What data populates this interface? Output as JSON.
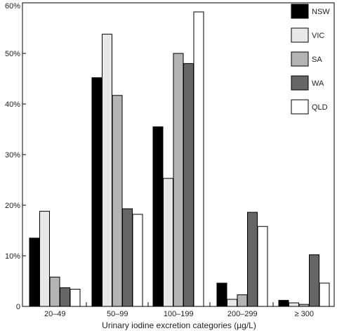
{
  "chart_data": {
    "type": "bar",
    "xlabel": "Urinary iodine excretion categories (µg/L)",
    "ylabel": "",
    "categories": [
      "20–49",
      "50–99",
      "100–199",
      "200–299",
      "≥ 300"
    ],
    "ylim": [
      0,
      60
    ],
    "yticks": [
      0,
      10,
      20,
      30,
      40,
      50,
      60
    ],
    "ytick_labels": [
      "0",
      "10%",
      "20%",
      "30%",
      "40%",
      "50%",
      "60%"
    ],
    "grid": false,
    "legend_position": "top-right",
    "series": [
      {
        "name": "NSW",
        "color": "#000000",
        "values": [
          13.5,
          45.2,
          35.5,
          4.6,
          1.2
        ]
      },
      {
        "name": "VIC",
        "color": "#e8e8e8",
        "values": [
          18.8,
          53.8,
          25.3,
          1.4,
          0.7
        ]
      },
      {
        "name": "SA",
        "color": "#b4b4b4",
        "values": [
          5.8,
          41.7,
          50.0,
          2.3,
          0.4
        ]
      },
      {
        "name": "WA",
        "color": "#666666",
        "values": [
          3.7,
          19.3,
          48.0,
          18.6,
          10.2
        ]
      },
      {
        "name": "QLD",
        "color": "#ffffff",
        "values": [
          3.4,
          18.2,
          58.2,
          15.8,
          4.6
        ]
      }
    ]
  }
}
